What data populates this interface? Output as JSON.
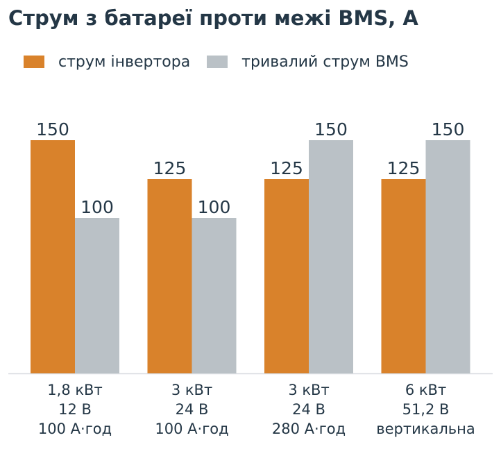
{
  "colors": {
    "inverter": "#D9822B",
    "bms": "#BAC1C6",
    "text": "#243746",
    "axis": "#D9DDE1"
  },
  "chart_data": {
    "type": "bar",
    "title": "Струм з батареї проти межі BMS, А",
    "categories": [
      [
        "1,8 кВт",
        "12 В",
        "100 А·год"
      ],
      [
        "3 кВт",
        "24 В",
        "100 А·год"
      ],
      [
        "3 кВт",
        "24 В",
        "280 А·год"
      ],
      [
        "6 кВт",
        "51,2 В",
        "вертикальна"
      ]
    ],
    "series": [
      {
        "name": "струм інвертора",
        "values": [
          150,
          125,
          125,
          125
        ]
      },
      {
        "name": "тривалий струм BMS",
        "values": [
          100,
          100,
          150,
          150
        ]
      }
    ],
    "ylim": [
      0,
      150
    ],
    "grid": false,
    "legend": "top-left"
  }
}
